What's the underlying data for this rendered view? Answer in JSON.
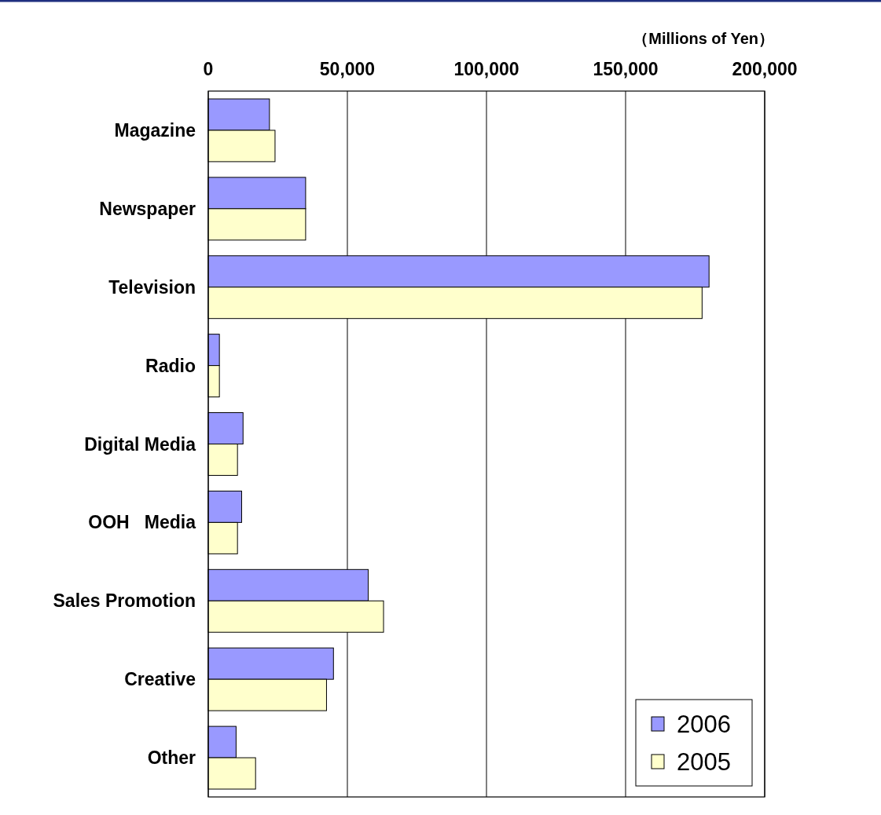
{
  "chart_data": {
    "type": "bar",
    "orientation": "horizontal",
    "xlabel": "（Millions of Yen）",
    "categories": [
      "Magazine",
      "Newspaper",
      "Television",
      "Radio",
      "Digital Media",
      "OOH   Media",
      "Sales Promotion",
      "Creative",
      "Other"
    ],
    "series": [
      {
        "name": "2006",
        "color": "#9999ff",
        "values": [
          22000,
          35000,
          180000,
          4000,
          12500,
          12000,
          57500,
          45000,
          10000
        ]
      },
      {
        "name": "2005",
        "color": "#ffffcc",
        "values": [
          24000,
          35000,
          177500,
          4000,
          10500,
          10500,
          63000,
          42500,
          17000
        ]
      }
    ],
    "xlim": [
      0,
      200000
    ],
    "xticks": [
      {
        "value": 0,
        "label": "0"
      },
      {
        "value": 50000,
        "label": "50,000"
      },
      {
        "value": 100000,
        "label": "100,000"
      },
      {
        "value": 150000,
        "label": "150,000"
      },
      {
        "value": 200000,
        "label": "200,000"
      }
    ],
    "grid": "x",
    "legend": "bottom right"
  }
}
